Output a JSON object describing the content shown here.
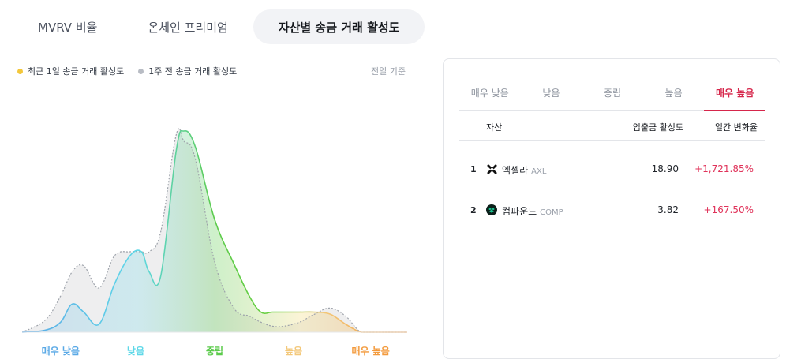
{
  "tabs": [
    {
      "label": "MVRV 비율",
      "active": false
    },
    {
      "label": "온체인 프리미엄",
      "active": false
    },
    {
      "label": "자산별 송금 거래 활성도",
      "active": true
    }
  ],
  "legend": {
    "current": {
      "label": "최근 1일 송금 거래 활성도",
      "color": "#f3c73b"
    },
    "previous": {
      "label": "1주 전 송금 거래 활성도",
      "color": "#b8bcc4"
    }
  },
  "basis": "전일 기준",
  "chart_data": {
    "type": "area",
    "categories": [
      "매우 낮음",
      "낮음",
      "중립",
      "높음",
      "매우 높음"
    ],
    "category_colors": [
      "#5aa9e6",
      "#5fd8e8",
      "#5ccb4c",
      "#f3c87a",
      "#f39a3c"
    ],
    "x": [
      0,
      6,
      10,
      13,
      16,
      20,
      24,
      28,
      31,
      33,
      36,
      40,
      42,
      45,
      50,
      55,
      59,
      62,
      65,
      68,
      72,
      76,
      80,
      84,
      88,
      92,
      96,
      100
    ],
    "series": [
      {
        "values": [
          0,
          1,
          5,
          14,
          10,
          4,
          24,
          38,
          40,
          30,
          28,
          90,
          100,
          92,
          56,
          34,
          18,
          10,
          10,
          10,
          10,
          10,
          9,
          4,
          0,
          0,
          0,
          0
        ]
      },
      {
        "values": [
          0,
          6,
          18,
          30,
          33,
          22,
          38,
          40,
          40,
          40,
          50,
          98,
          95,
          86,
          35,
          12,
          8,
          5,
          3,
          3,
          5,
          9,
          12,
          8,
          0,
          0,
          0,
          0
        ]
      }
    ],
    "ylim": [
      0,
      100
    ]
  },
  "table": {
    "tabs": [
      {
        "label": "매우 낮음",
        "active": false
      },
      {
        "label": "낮음",
        "active": false
      },
      {
        "label": "중립",
        "active": false
      },
      {
        "label": "높음",
        "active": false
      },
      {
        "label": "매우 높음",
        "active": true
      }
    ],
    "headers": {
      "asset": "자산",
      "activity": "입출금 활성도",
      "change": "일간 변화율"
    },
    "rows": [
      {
        "rank": "1",
        "name": "엑셀라",
        "ticker": "AXL",
        "activity": "18.90",
        "change": "+1,721.85%",
        "icon": "axelar-icon"
      },
      {
        "rank": "2",
        "name": "컴파운드",
        "ticker": "COMP",
        "activity": "3.82",
        "change": "+167.50%",
        "icon": "compound-icon"
      }
    ]
  }
}
